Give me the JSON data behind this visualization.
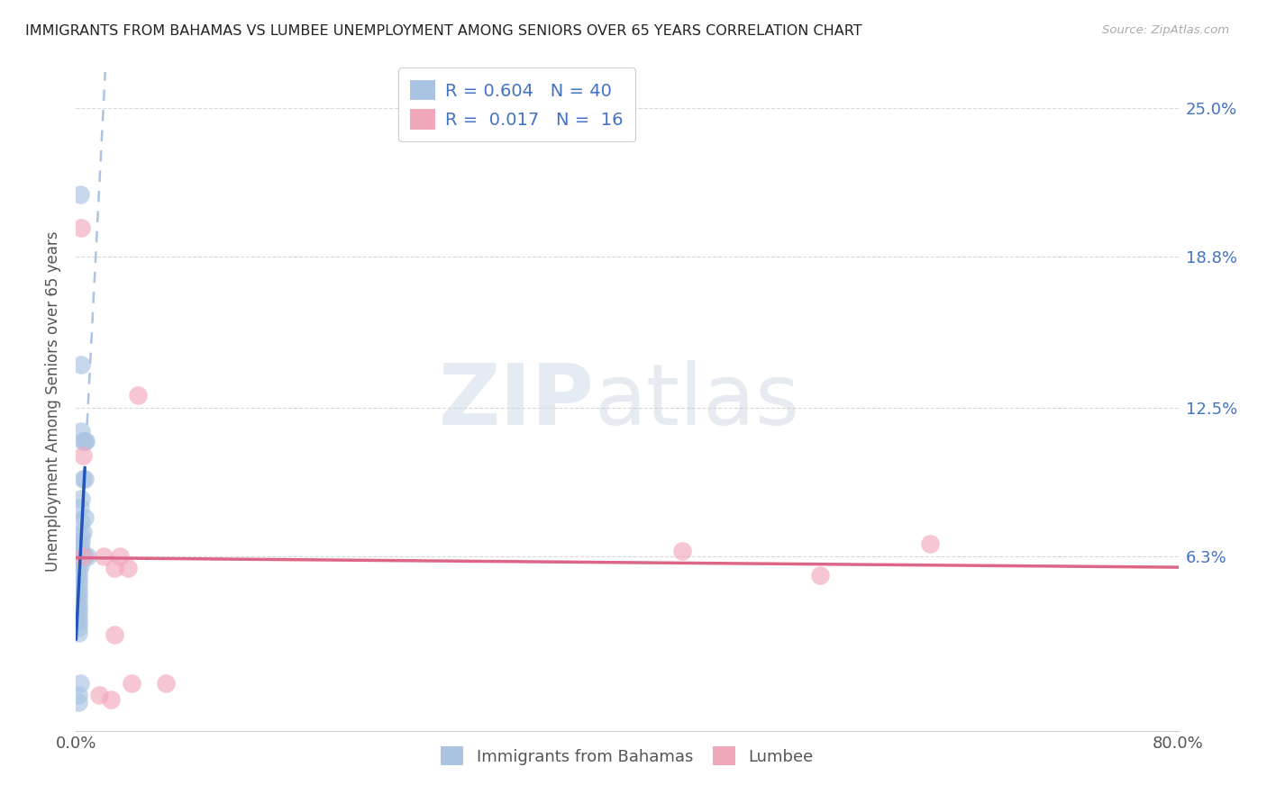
{
  "title": "IMMIGRANTS FROM BAHAMAS VS LUMBEE UNEMPLOYMENT AMONG SENIORS OVER 65 YEARS CORRELATION CHART",
  "source": "Source: ZipAtlas.com",
  "ylabel": "Unemployment Among Seniors over 65 years",
  "legend1_label": "Immigrants from Bahamas",
  "legend2_label": "Lumbee",
  "r1": 0.604,
  "n1": 40,
  "r2": 0.017,
  "n2": 16,
  "xlim": [
    0.0,
    0.8
  ],
  "ylim": [
    -0.01,
    0.265
  ],
  "ytick_vals": [
    0.063,
    0.125,
    0.188,
    0.25
  ],
  "ytick_labels": [
    "6.3%",
    "12.5%",
    "18.8%",
    "25.0%"
  ],
  "color_blue": "#aac4e2",
  "color_pink": "#f2a8bb",
  "trendline_blue": "#2255bb",
  "trendline_pink": "#dd6688",
  "blue_scatter": [
    [
      0.003,
      0.214
    ],
    [
      0.004,
      0.143
    ],
    [
      0.007,
      0.111
    ],
    [
      0.005,
      0.111
    ],
    [
      0.006,
      0.095
    ],
    [
      0.004,
      0.115
    ],
    [
      0.006,
      0.111
    ],
    [
      0.005,
      0.095
    ],
    [
      0.004,
      0.087
    ],
    [
      0.003,
      0.083
    ],
    [
      0.006,
      0.079
    ],
    [
      0.004,
      0.077
    ],
    [
      0.005,
      0.073
    ],
    [
      0.004,
      0.071
    ],
    [
      0.004,
      0.069
    ],
    [
      0.003,
      0.067
    ],
    [
      0.004,
      0.065
    ],
    [
      0.003,
      0.063
    ],
    [
      0.003,
      0.063
    ],
    [
      0.003,
      0.061
    ],
    [
      0.003,
      0.059
    ],
    [
      0.002,
      0.057
    ],
    [
      0.002,
      0.055
    ],
    [
      0.002,
      0.053
    ],
    [
      0.002,
      0.051
    ],
    [
      0.002,
      0.049
    ],
    [
      0.002,
      0.047
    ],
    [
      0.002,
      0.045
    ],
    [
      0.002,
      0.043
    ],
    [
      0.002,
      0.041
    ],
    [
      0.002,
      0.039
    ],
    [
      0.002,
      0.037
    ],
    [
      0.002,
      0.035
    ],
    [
      0.002,
      0.033
    ],
    [
      0.002,
      0.031
    ],
    [
      0.008,
      0.063
    ],
    [
      0.006,
      0.063
    ],
    [
      0.003,
      0.01
    ],
    [
      0.002,
      0.005
    ],
    [
      0.002,
      0.002
    ]
  ],
  "pink_scatter": [
    [
      0.004,
      0.2
    ],
    [
      0.005,
      0.105
    ],
    [
      0.005,
      0.063
    ],
    [
      0.02,
      0.063
    ],
    [
      0.028,
      0.058
    ],
    [
      0.032,
      0.063
    ],
    [
      0.038,
      0.058
    ],
    [
      0.045,
      0.13
    ],
    [
      0.44,
      0.065
    ],
    [
      0.54,
      0.055
    ],
    [
      0.62,
      0.068
    ],
    [
      0.028,
      0.03
    ],
    [
      0.04,
      0.01
    ],
    [
      0.065,
      0.01
    ],
    [
      0.017,
      0.005
    ],
    [
      0.025,
      0.003
    ]
  ],
  "watermark_zip": "ZIP",
  "watermark_atlas": "atlas",
  "background_color": "#ffffff",
  "grid_color": "#d8d8d8"
}
